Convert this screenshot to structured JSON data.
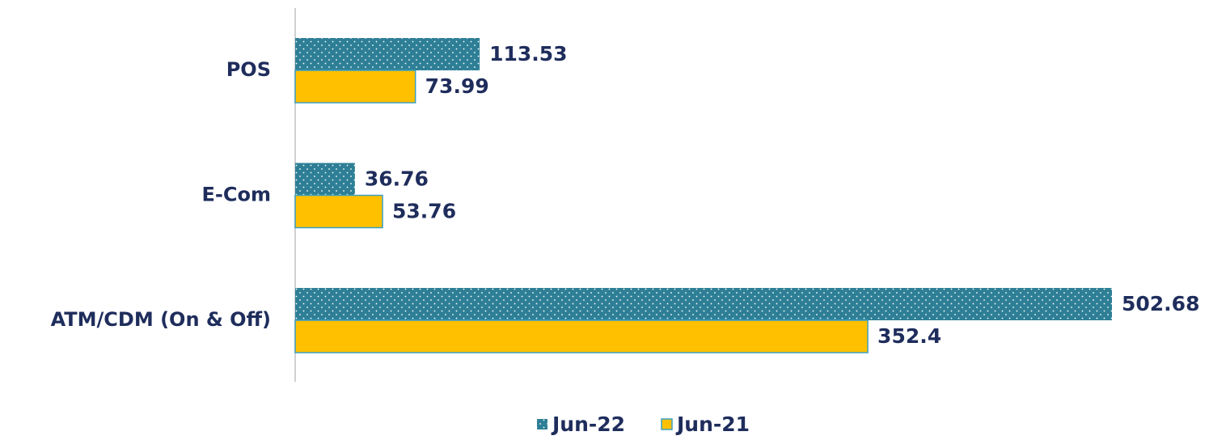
{
  "chart_data": {
    "type": "barh",
    "categories": [
      "POS",
      "E-Com",
      "ATM/CDM (On & Off)"
    ],
    "series": [
      {
        "name": "Jun-22",
        "color": "#2e7f96",
        "values": [
          113.53,
          36.76,
          502.68
        ]
      },
      {
        "name": "Jun-21",
        "color": "#ffc000",
        "values": [
          73.99,
          53.76,
          352.4
        ]
      }
    ]
  }
}
